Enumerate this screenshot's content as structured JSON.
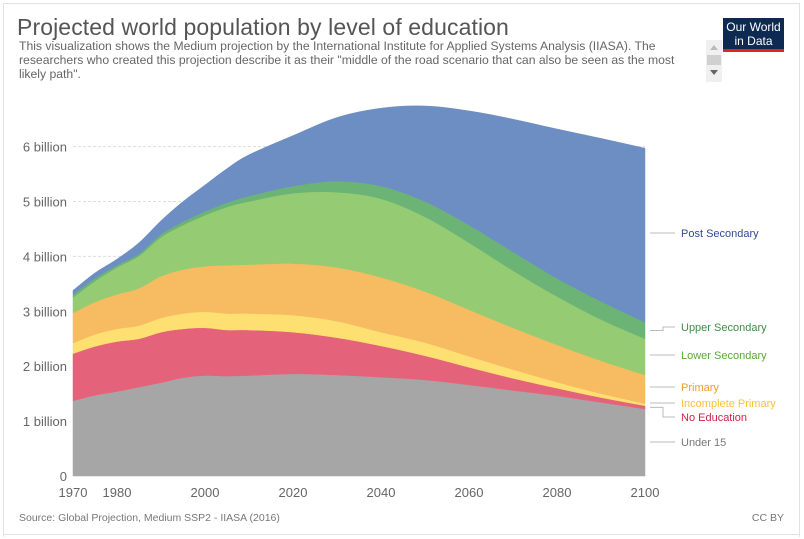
{
  "header": {
    "title": "Projected world population by level of education",
    "subtitle": "This visualization shows the Medium projection by the International Institute for Applied Systems Analysis (IIASA). The researchers who created this projection describe it as their \"middle of the road scenario that can also be seen as the most likely path\".",
    "logo_line1": "Our World",
    "logo_line2": "in Data"
  },
  "footer": {
    "source": "Source: Global Projection, Medium SSP2 - IIASA (2016)",
    "license": "CC BY"
  },
  "chart_data": {
    "type": "area",
    "stacked": true,
    "title": "Projected world population by level of education",
    "xlabel": "",
    "ylabel": "",
    "x": [
      1970,
      1975,
      1980,
      1985,
      1990,
      1995,
      2000,
      2005,
      2010,
      2020,
      2030,
      2040,
      2050,
      2060,
      2070,
      2080,
      2090,
      2100
    ],
    "xlim": [
      1970,
      2100
    ],
    "ylim": [
      0,
      7
    ],
    "grid": true,
    "legend_position": "right",
    "x_ticks": [
      {
        "value": 1970,
        "label": "1970"
      },
      {
        "value": 1980,
        "label": "1980"
      },
      {
        "value": 2000,
        "label": "2000"
      },
      {
        "value": 2020,
        "label": "2020"
      },
      {
        "value": 2040,
        "label": "2040"
      },
      {
        "value": 2060,
        "label": "2060"
      },
      {
        "value": 2080,
        "label": "2080"
      },
      {
        "value": 2100,
        "label": "2100"
      }
    ],
    "y_ticks": [
      {
        "value": 0,
        "label": "0"
      },
      {
        "value": 1,
        "label": "1 billion"
      },
      {
        "value": 2,
        "label": "2 billion"
      },
      {
        "value": 3,
        "label": "3 billion"
      },
      {
        "value": 4,
        "label": "4 billion"
      },
      {
        "value": 5,
        "label": "5 billion"
      },
      {
        "value": 6,
        "label": "6 billion"
      }
    ],
    "units": "billion",
    "series": [
      {
        "name": "Under 15",
        "color": "#a6a6a6",
        "label_color": "#777777",
        "values": [
          1.37,
          1.47,
          1.54,
          1.62,
          1.7,
          1.79,
          1.83,
          1.82,
          1.83,
          1.86,
          1.84,
          1.8,
          1.75,
          1.66,
          1.56,
          1.46,
          1.34,
          1.22
        ]
      },
      {
        "name": "No Education",
        "color": "#e5637a",
        "label_color": "#c9254a",
        "values": [
          0.86,
          0.89,
          0.91,
          0.88,
          0.92,
          0.89,
          0.87,
          0.84,
          0.83,
          0.76,
          0.68,
          0.57,
          0.44,
          0.32,
          0.22,
          0.14,
          0.09,
          0.06
        ]
      },
      {
        "name": "Incomplete Primary",
        "color": "#fedf72",
        "label_color": "#f8c33a",
        "values": [
          0.19,
          0.22,
          0.23,
          0.24,
          0.26,
          0.28,
          0.29,
          0.3,
          0.3,
          0.31,
          0.3,
          0.25,
          0.24,
          0.2,
          0.16,
          0.11,
          0.07,
          0.04
        ]
      },
      {
        "name": "Primary",
        "color": "#f7bb61",
        "label_color": "#f09a2a",
        "values": [
          0.55,
          0.59,
          0.63,
          0.68,
          0.76,
          0.8,
          0.83,
          0.88,
          0.89,
          0.94,
          0.98,
          1.0,
          0.93,
          0.85,
          0.76,
          0.68,
          0.6,
          0.52
        ]
      },
      {
        "name": "Lower Secondary",
        "color": "#95cb72",
        "label_color": "#5aa83a",
        "values": [
          0.28,
          0.38,
          0.49,
          0.59,
          0.71,
          0.81,
          0.93,
          1.06,
          1.15,
          1.28,
          1.37,
          1.43,
          1.36,
          1.22,
          1.04,
          0.88,
          0.75,
          0.66
        ]
      },
      {
        "name": "Upper Secondary",
        "color": "#6bb476",
        "label_color": "#3d8f45",
        "values": [
          0.05,
          0.05,
          0.04,
          0.04,
          0.05,
          0.06,
          0.07,
          0.08,
          0.1,
          0.13,
          0.2,
          0.23,
          0.28,
          0.32,
          0.34,
          0.33,
          0.33,
          0.3
        ]
      },
      {
        "name": "Post Secondary",
        "color": "#6d8ec2",
        "label_color": "#2f4c8f",
        "values": [
          0.08,
          0.1,
          0.11,
          0.2,
          0.25,
          0.37,
          0.48,
          0.62,
          0.75,
          0.92,
          1.16,
          1.42,
          1.74,
          2.08,
          2.42,
          2.72,
          2.97,
          3.17
        ]
      }
    ]
  }
}
